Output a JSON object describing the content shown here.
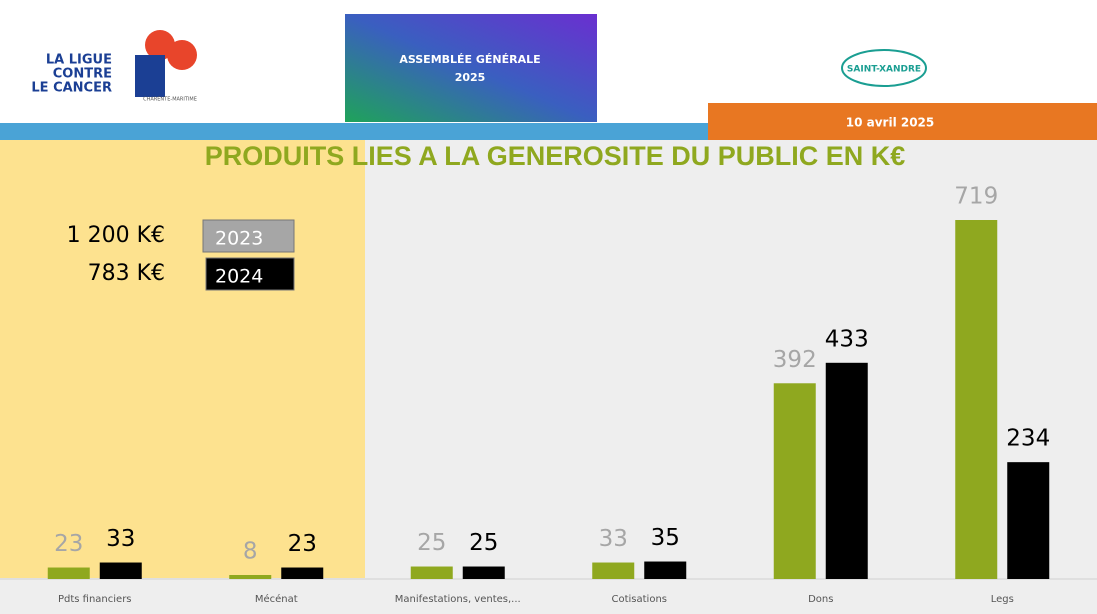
{
  "header": {
    "logo_left": [
      "LA LIGUE",
      "CONTRE",
      "LE CANCER"
    ],
    "logo_left_sub": "CHARENTE-MARITIME",
    "event": [
      "ASSEMBLÉE GÉNÉRALE",
      "2025"
    ],
    "logo_right": "SAINT-XANDRE",
    "date": "10 avril 2025"
  },
  "chart_data": {
    "type": "bar",
    "title": "PRODUITS LIES A LA GENEROSITE DU PUBLIC EN K€",
    "categories": [
      "Pdts financiers",
      "Mécénat",
      "Manifestations, ventes,...",
      "Cotisations",
      "Dons",
      "Legs"
    ],
    "series": [
      {
        "name": "2023",
        "color": "#8fa81f",
        "legend_color": "#a6a6a6",
        "label_color": "#a6a6a6",
        "total": "1 200 K€",
        "values": [
          23,
          8,
          25,
          33,
          392,
          719
        ]
      },
      {
        "name": "2024",
        "color": "#000000",
        "legend_color": "#000000",
        "label_color": "#000000",
        "total": "783 K€",
        "values": [
          33,
          23,
          25,
          35,
          433,
          234
        ]
      }
    ]
  }
}
